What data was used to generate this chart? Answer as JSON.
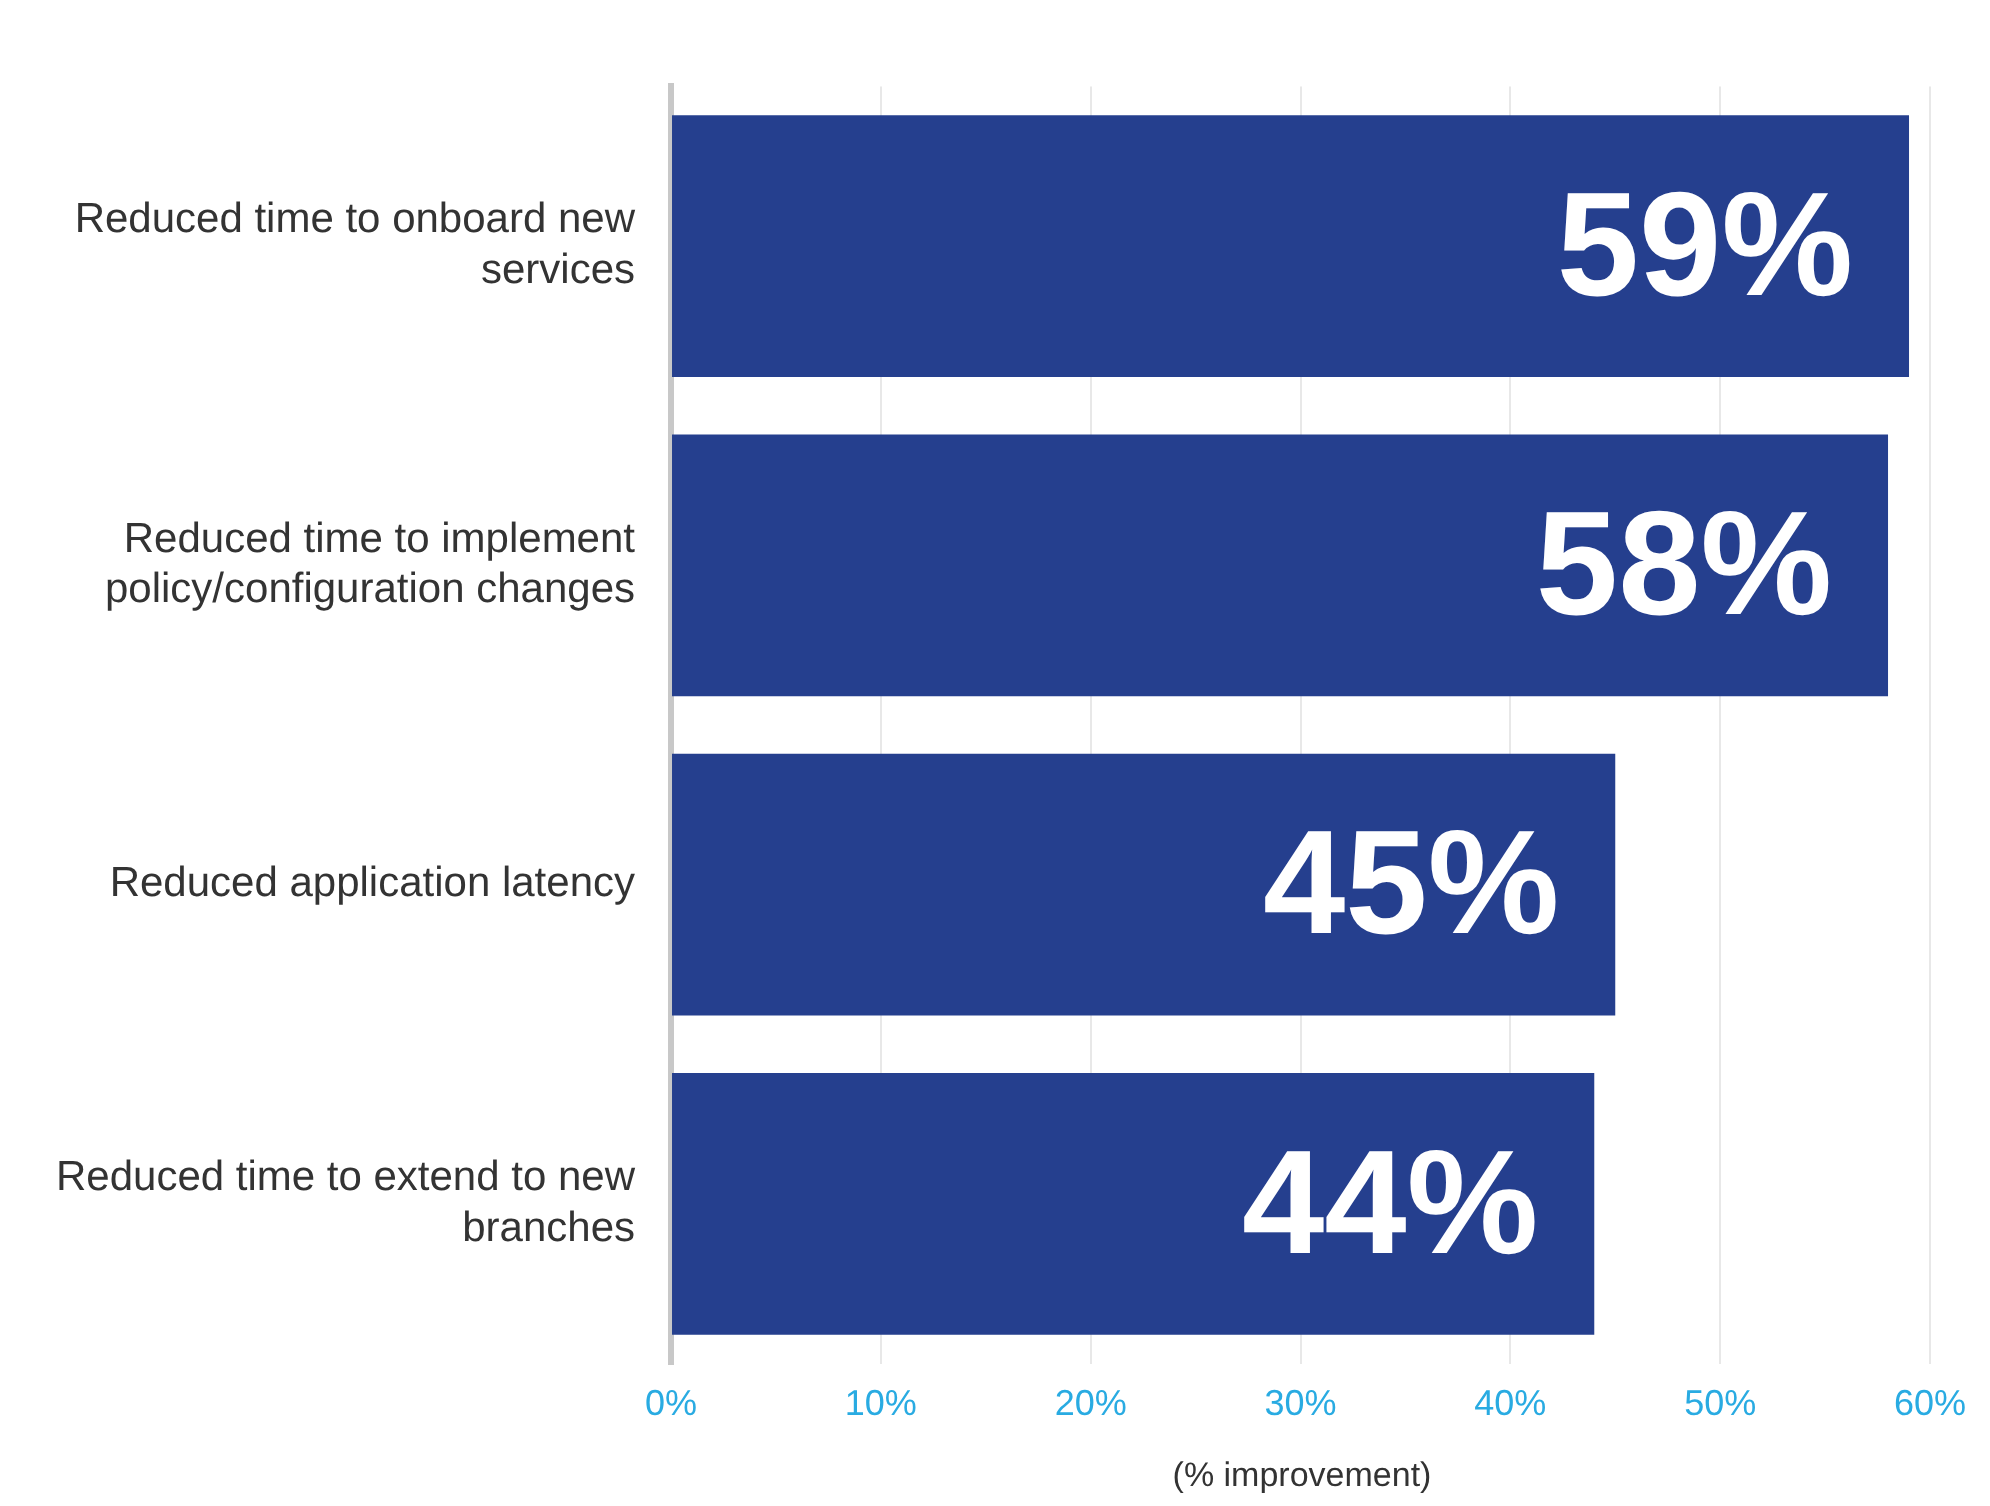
{
  "chart_data": {
    "type": "bar",
    "orientation": "horizontal",
    "xlabel": "(% improvement)",
    "categories": [
      "Reduced time to onboard new services",
      "Reduced time to implement policy/configuration changes",
      "Reduced application latency",
      "Reduced time to extend to new branches"
    ],
    "values": [
      59,
      58,
      45,
      44
    ],
    "value_labels": [
      "59%",
      "58%",
      "45%",
      "44%"
    ],
    "color": "#253f8e",
    "xlim": [
      0,
      60
    ],
    "xticks": [
      {
        "value": 0,
        "label": "0%"
      },
      {
        "value": 10,
        "label": "10%"
      },
      {
        "value": 20,
        "label": "20%"
      },
      {
        "value": 30,
        "label": "30%"
      },
      {
        "value": 40,
        "label": "40%"
      },
      {
        "value": 50,
        "label": "50%"
      },
      {
        "value": 60,
        "label": "60%"
      }
    ],
    "grid": "x"
  }
}
